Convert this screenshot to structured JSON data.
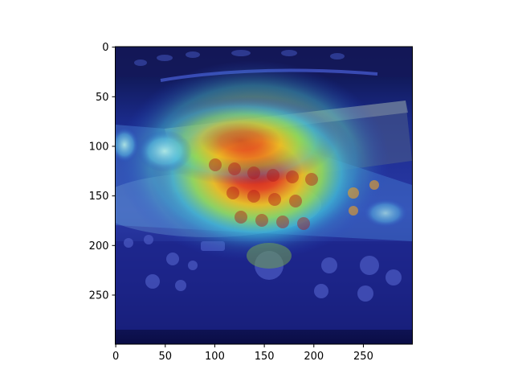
{
  "figure": {
    "image_description_name": "remote-controls-heatmap-overlay",
    "x_ticks": [
      "0",
      "50",
      "100",
      "150",
      "200",
      "250"
    ],
    "y_ticks": [
      "0",
      "50",
      "100",
      "150",
      "200",
      "250"
    ],
    "x_tick_values": [
      0,
      50,
      100,
      150,
      200,
      250
    ],
    "y_tick_values": [
      0,
      50,
      100,
      150,
      200,
      250
    ],
    "x_range": [
      0,
      299
    ],
    "y_range": [
      0,
      299
    ],
    "colormap": "jet"
  }
}
